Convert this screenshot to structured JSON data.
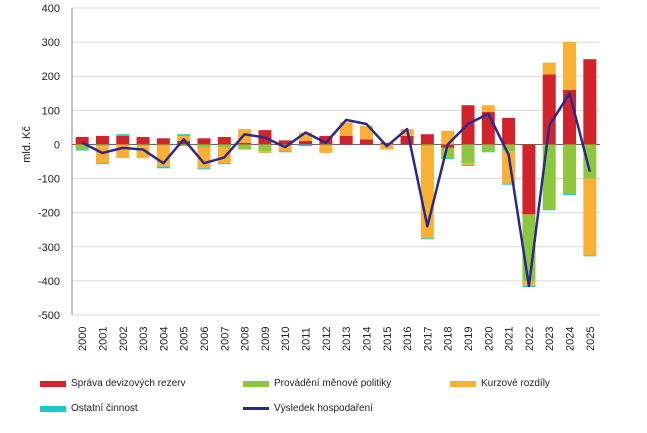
{
  "chart_data": {
    "type": "bar",
    "stacked": true,
    "ylabel": "mld. Kč",
    "ylim": [
      -500,
      400
    ],
    "yticks": [
      400,
      300,
      200,
      100,
      0,
      -100,
      -200,
      -300,
      -400,
      -500
    ],
    "grid": true,
    "legend_position": "bottom",
    "categories": [
      "2000",
      "2001",
      "2002",
      "2003",
      "2004",
      "2005",
      "2006",
      "2007",
      "2008",
      "2009",
      "2010",
      "2011",
      "2012",
      "2013",
      "2014",
      "2015",
      "2016",
      "2017",
      "2018",
      "2019",
      "2020",
      "2021",
      "2022",
      "2023",
      "2024",
      "2025"
    ],
    "series": [
      {
        "name": "Správa devizových rezerv",
        "color": "#d2232a",
        "values": [
          22,
          25,
          25,
          22,
          18,
          10,
          18,
          22,
          5,
          42,
          12,
          10,
          25,
          25,
          15,
          5,
          25,
          30,
          -10,
          115,
          95,
          78,
          -205,
          205,
          160,
          250
        ]
      },
      {
        "name": "Provádění měnové politiky",
        "color": "#8dc63f",
        "values": [
          -15,
          -5,
          0,
          -5,
          -5,
          -5,
          -10,
          -10,
          -15,
          -20,
          -5,
          0,
          -5,
          0,
          0,
          0,
          0,
          -5,
          -30,
          -55,
          -20,
          -20,
          -195,
          -190,
          -145,
          -100
        ]
      },
      {
        "name": "Kurzové rozdíly",
        "color": "#fbb034",
        "values": [
          0,
          -50,
          -40,
          -35,
          -60,
          15,
          -60,
          -45,
          40,
          -5,
          -15,
          25,
          -20,
          40,
          40,
          -15,
          20,
          -270,
          40,
          -5,
          20,
          -95,
          -15,
          35,
          140,
          -225
        ]
      },
      {
        "name": "Ostatní činnost",
        "color": "#1fc7c7",
        "values": [
          -3,
          -3,
          5,
          0,
          -5,
          5,
          -3,
          -3,
          0,
          0,
          -3,
          -5,
          0,
          0,
          0,
          0,
          0,
          -3,
          -3,
          -3,
          -3,
          -3,
          -3,
          -3,
          -3,
          -3
        ]
      }
    ],
    "line": {
      "name": "Výsledek hospodaření",
      "color": "#2b2a8c",
      "values": [
        5,
        -25,
        -10,
        -15,
        -55,
        15,
        -55,
        -38,
        30,
        20,
        -8,
        35,
        5,
        72,
        60,
        -5,
        45,
        -240,
        0,
        60,
        90,
        -30,
        -415,
        55,
        150,
        -80
      ]
    }
  }
}
